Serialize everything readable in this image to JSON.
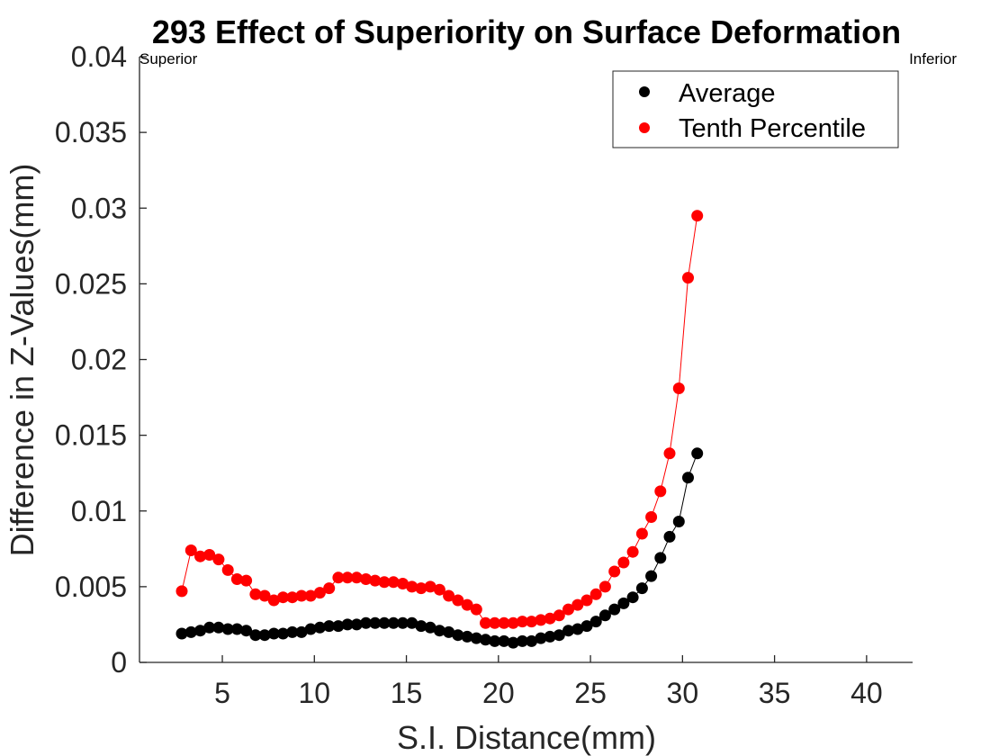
{
  "chart_data": {
    "type": "line",
    "title": "293  Effect of Superiority on Surface Deformation",
    "xlabel": "S.I. Distance(mm)",
    "ylabel": "Difference in Z-Values(mm)",
    "xlim": [
      0.5,
      42.5
    ],
    "ylim": [
      0,
      0.04
    ],
    "xticks": [
      5,
      10,
      15,
      20,
      25,
      30,
      35,
      40
    ],
    "xtick_labels": [
      "5",
      "10",
      "15",
      "20",
      "25",
      "30",
      "35",
      "40"
    ],
    "yticks": [
      0,
      0.005,
      0.01,
      0.015,
      0.02,
      0.025,
      0.03,
      0.035,
      0.04
    ],
    "ytick_labels": [
      "0",
      "0.005",
      "0.01",
      "0.015",
      "0.02",
      "0.025",
      "0.03",
      "0.035",
      "0.04"
    ],
    "grid": false,
    "legend_position": "top-right",
    "annotations": {
      "left": "Superior",
      "right": "Inferior"
    },
    "series": [
      {
        "name": "Average",
        "color": "#000000",
        "x": [
          2.8,
          3.3,
          3.8,
          4.3,
          4.8,
          5.3,
          5.8,
          6.3,
          6.8,
          7.3,
          7.8,
          8.3,
          8.8,
          9.3,
          9.8,
          10.3,
          10.8,
          11.3,
          11.8,
          12.3,
          12.8,
          13.3,
          13.8,
          14.3,
          14.8,
          15.3,
          15.8,
          16.3,
          16.8,
          17.3,
          17.8,
          18.3,
          18.8,
          19.3,
          19.8,
          20.3,
          20.8,
          21.3,
          21.8,
          22.3,
          22.8,
          23.3,
          23.8,
          24.3,
          24.8,
          25.3,
          25.8,
          26.3,
          26.8,
          27.3,
          27.8,
          28.3,
          28.8,
          29.3,
          29.8,
          30.3,
          30.8
        ],
        "y": [
          0.0019,
          0.002,
          0.0021,
          0.0023,
          0.0023,
          0.0022,
          0.0022,
          0.0021,
          0.0018,
          0.0018,
          0.0019,
          0.0019,
          0.002,
          0.002,
          0.0022,
          0.0023,
          0.0024,
          0.0024,
          0.0025,
          0.0025,
          0.0026,
          0.0026,
          0.0026,
          0.0026,
          0.0026,
          0.0026,
          0.0024,
          0.0023,
          0.0021,
          0.002,
          0.0018,
          0.0017,
          0.0016,
          0.0015,
          0.0014,
          0.0014,
          0.0013,
          0.0014,
          0.0014,
          0.0016,
          0.0017,
          0.0018,
          0.0021,
          0.0022,
          0.0024,
          0.0027,
          0.0031,
          0.0035,
          0.0039,
          0.0043,
          0.0049,
          0.0057,
          0.0069,
          0.0083,
          0.0093,
          0.0122,
          0.0138
        ]
      },
      {
        "name": "Tenth Percentile",
        "color": "#ff0000",
        "x": [
          2.8,
          3.3,
          3.8,
          4.3,
          4.8,
          5.3,
          5.8,
          6.3,
          6.8,
          7.3,
          7.8,
          8.3,
          8.8,
          9.3,
          9.8,
          10.3,
          10.8,
          11.3,
          11.8,
          12.3,
          12.8,
          13.3,
          13.8,
          14.3,
          14.8,
          15.3,
          15.8,
          16.3,
          16.8,
          17.3,
          17.8,
          18.3,
          18.8,
          19.3,
          19.8,
          20.3,
          20.8,
          21.3,
          21.8,
          22.3,
          22.8,
          23.3,
          23.8,
          24.3,
          24.8,
          25.3,
          25.8,
          26.3,
          26.8,
          27.3,
          27.8,
          28.3,
          28.8,
          29.3,
          29.8,
          30.3,
          30.8
        ],
        "y": [
          0.0047,
          0.0074,
          0.007,
          0.0071,
          0.0068,
          0.0061,
          0.0055,
          0.0054,
          0.0045,
          0.0044,
          0.0041,
          0.0043,
          0.0043,
          0.0044,
          0.0044,
          0.0046,
          0.0049,
          0.0056,
          0.0056,
          0.0056,
          0.0055,
          0.0054,
          0.0053,
          0.0053,
          0.0052,
          0.005,
          0.0049,
          0.005,
          0.0048,
          0.0044,
          0.0041,
          0.0038,
          0.0035,
          0.0026,
          0.0026,
          0.0026,
          0.0026,
          0.0027,
          0.0027,
          0.0028,
          0.0029,
          0.0031,
          0.0035,
          0.0038,
          0.0041,
          0.0045,
          0.005,
          0.006,
          0.0066,
          0.0073,
          0.0085,
          0.0096,
          0.0113,
          0.0138,
          0.0181,
          0.0254,
          0.0295
        ]
      }
    ]
  }
}
